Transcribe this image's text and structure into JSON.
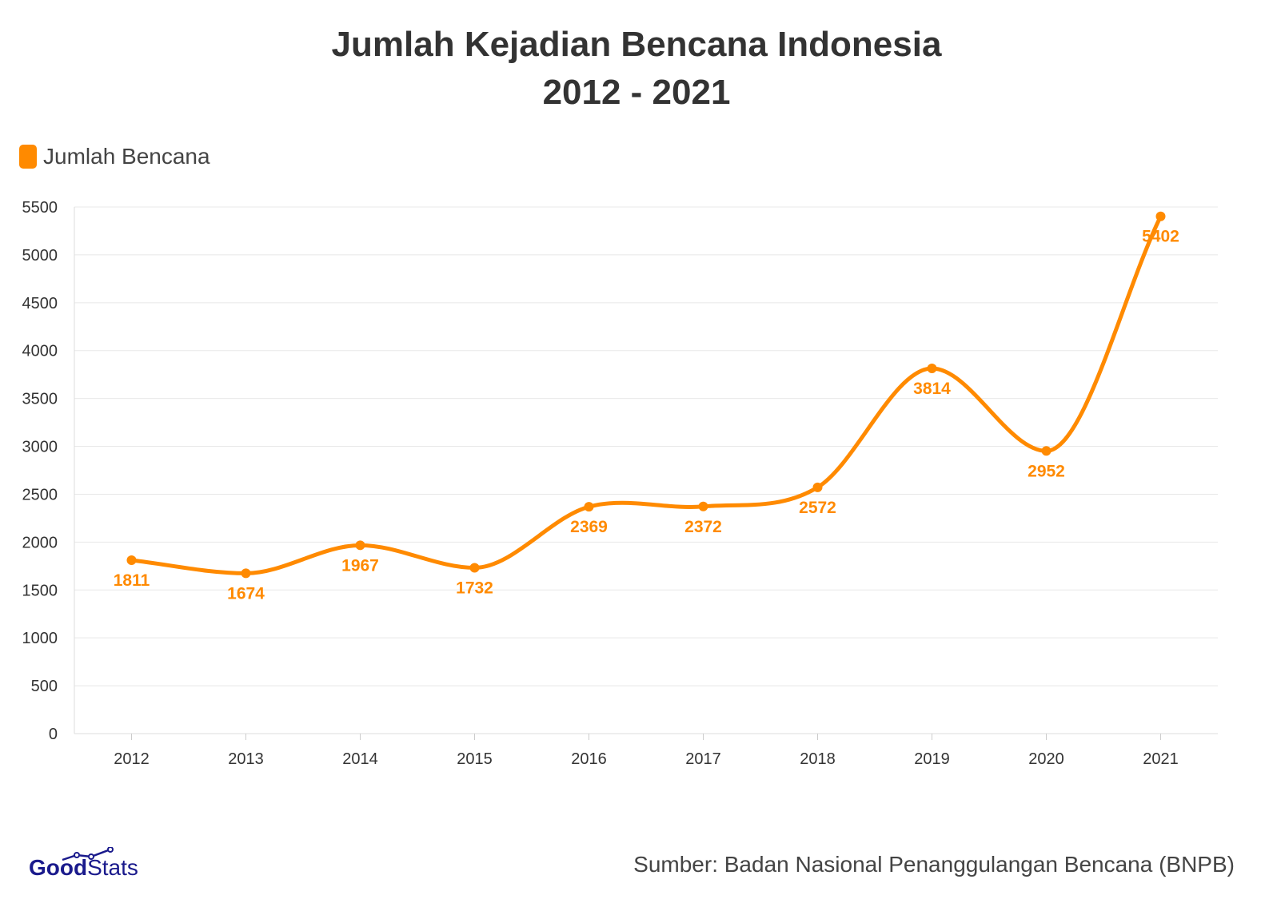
{
  "title_line1": "Jumlah Kejadian Bencana Indonesia",
  "title_line2": "2012 - 2021",
  "source": "Sumber: Badan Nasional Penanggulangan Bencana (BNPB)",
  "logo": {
    "bold": "Good",
    "light": "Stats"
  },
  "colors": {
    "series": "#ff8a00",
    "logo": "#1a1a8c"
  },
  "chart_data": {
    "type": "line",
    "title": "Jumlah Kejadian Bencana Indonesia 2012 - 2021",
    "categories": [
      "2012",
      "2013",
      "2014",
      "2015",
      "2016",
      "2017",
      "2018",
      "2019",
      "2020",
      "2021"
    ],
    "series": [
      {
        "name": "Jumlah Bencana",
        "values": [
          1811,
          1674,
          1967,
          1732,
          2369,
          2372,
          2572,
          3814,
          2952,
          5402
        ]
      }
    ],
    "yticks": [
      0,
      500,
      1000,
      1500,
      2000,
      2500,
      3000,
      3500,
      4000,
      4500,
      5000,
      5500
    ],
    "ylim": [
      0,
      5500
    ],
    "grid": true,
    "legend": "top-left",
    "smooth": true
  }
}
